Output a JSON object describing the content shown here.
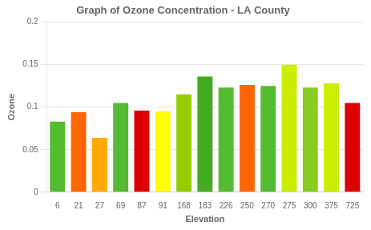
{
  "chart_data": {
    "type": "bar",
    "title": "Graph of Ozone Concentration - LA County",
    "xlabel": "Elevation",
    "ylabel": "Ozone",
    "categories": [
      "6",
      "21",
      "27",
      "69",
      "87",
      "91",
      "168",
      "183",
      "226",
      "250",
      "270",
      "275",
      "300",
      "375",
      "725"
    ],
    "values": [
      0.083,
      0.094,
      0.064,
      0.105,
      0.096,
      0.095,
      0.115,
      0.136,
      0.123,
      0.126,
      0.125,
      0.15,
      0.123,
      0.128,
      0.105
    ],
    "colors": [
      "#55bb33",
      "#ff6600",
      "#ffaa00",
      "#55bb33",
      "#dd0000",
      "#ffff00",
      "#99cc00",
      "#44aa22",
      "#55bb33",
      "#ff6600",
      "#55bb33",
      "#ccee00",
      "#88cc22",
      "#ccee00",
      "#dd0000"
    ],
    "ylim": [
      0,
      0.2
    ],
    "yticks": [
      0,
      0.05,
      0.1,
      0.15,
      0.2
    ],
    "grid": true
  }
}
